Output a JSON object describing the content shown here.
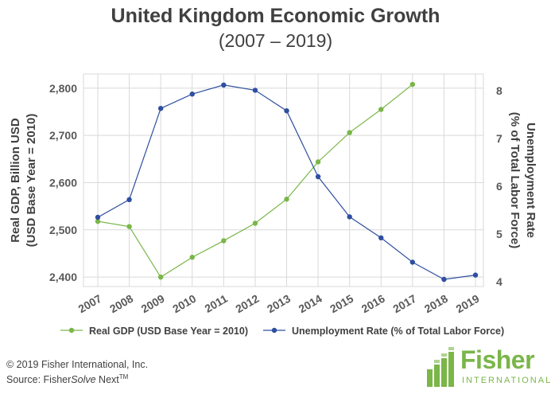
{
  "title": "United Kingdom Economic Growth",
  "subtitle": "(2007 – 2019)",
  "footer": {
    "copyright": "© 2019 Fisher International, Inc.",
    "source_prefix": "Source: Fisher",
    "source_italic": "Solve",
    "source_suffix": " Next",
    "source_tm": "TM"
  },
  "logo": {
    "word": "Fisher",
    "sub": "INTERNATIONAL",
    "icon": "bars-logo-icon"
  },
  "colors": {
    "gdp": "#7ab648",
    "unemployment": "#2e4fa0",
    "grid": "#d9d9d9",
    "text": "#595959"
  },
  "chart_data": {
    "type": "line",
    "categories": [
      "2007",
      "2008",
      "2009",
      "2010",
      "2011",
      "2012",
      "2013",
      "2014",
      "2015",
      "2016",
      "2017",
      "2018",
      "2019"
    ],
    "series": [
      {
        "name": "Real GDP (USD Base Year = 2010)",
        "axis": "left",
        "color": "#7ab648",
        "values": [
          2518,
          2507,
          2400,
          2442,
          2477,
          2514,
          2565,
          2644,
          2706,
          2755,
          2808,
          null,
          null
        ]
      },
      {
        "name": "Unemployment Rate (% of Total Labor Force)",
        "axis": "right",
        "color": "#2e4fa0",
        "values": [
          5.35,
          5.72,
          7.63,
          7.93,
          8.12,
          8.01,
          7.58,
          6.2,
          5.36,
          4.92,
          4.41,
          4.05,
          4.14
        ]
      }
    ],
    "ylabel_left": "Real GDP, Billion USD\n(USD Base Year = 2010)",
    "ylabel_right": "Unemployment Rate\n(% of Total Labor Force)",
    "yticks_left": [
      {
        "value": 2400,
        "label": "2,400"
      },
      {
        "value": 2500,
        "label": "2,500"
      },
      {
        "value": 2600,
        "label": "2,600"
      },
      {
        "value": 2700,
        "label": "2,700"
      },
      {
        "value": 2800,
        "label": "2,800"
      }
    ],
    "yticks_right": [
      {
        "value": 4,
        "label": "4"
      },
      {
        "value": 5,
        "label": "5"
      },
      {
        "value": 6,
        "label": "6"
      },
      {
        "value": 7,
        "label": "7"
      },
      {
        "value": 8,
        "label": "8"
      }
    ],
    "ylim_left": [
      2380,
      2830
    ],
    "ylim_right": [
      3.9,
      8.35
    ],
    "grid": true,
    "legend": "bottom"
  }
}
